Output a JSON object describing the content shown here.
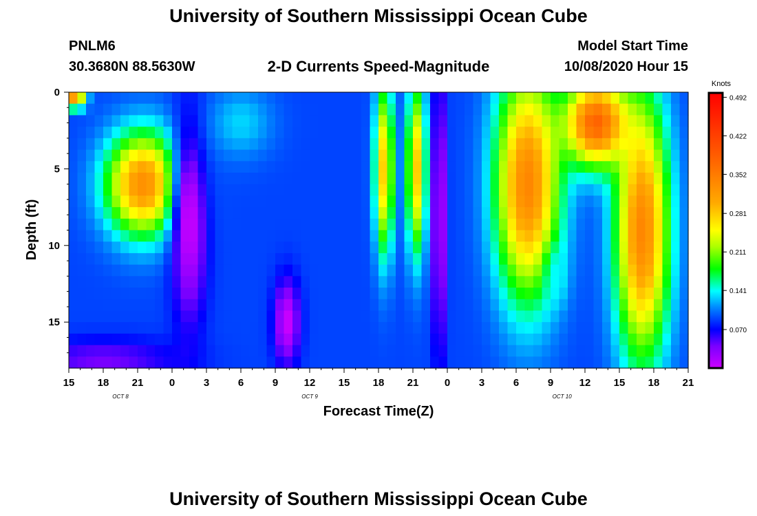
{
  "title": "University of Southern Mississippi Ocean Cube",
  "footer_title": "University of Southern Mississippi Ocean Cube",
  "station": "PNLM6",
  "coordinates": "30.3680N 88.5630W",
  "subtitle": "2-D Currents Speed-Magnitude",
  "model_start_label": "Model Start Time",
  "model_start_value": "10/08/2020 Hour 15",
  "chart_data": {
    "type": "heatmap",
    "title": "2-D Currents Speed-Magnitude",
    "xlabel": "Forecast Time(Z)",
    "ylabel": "Depth (ft)",
    "units": "Knots",
    "x_ticks": [
      "15",
      "18",
      "21",
      "0",
      "3",
      "6",
      "9",
      "12",
      "15",
      "18",
      "21",
      "0",
      "3",
      "6",
      "9",
      "12",
      "15",
      "18",
      "21"
    ],
    "x_date_labels": [
      {
        "label": "OCT 8",
        "at_hour": 4.5
      },
      {
        "label": "OCT 9",
        "at_hour": 21
      },
      {
        "label": "OCT 10",
        "at_hour": 43
      }
    ],
    "y_ticks": [
      0,
      5,
      10,
      15
    ],
    "ylim": [
      0,
      18
    ],
    "xlim_hours": [
      0,
      54
    ],
    "colorbar_ticks": [
      0.07,
      0.141,
      0.211,
      0.281,
      0.352,
      0.422,
      0.492
    ],
    "colorbar_range": [
      0,
      0.5
    ],
    "colorbar_colors": [
      "#cc00ff",
      "#7a00ff",
      "#0000ff",
      "#0088ff",
      "#00ffff",
      "#00ff00",
      "#aaff00",
      "#ffff00",
      "#ffaa00",
      "#ff6600",
      "#ff0000"
    ],
    "features": [
      {
        "hour": 6.5,
        "depth": 6,
        "speed_knots": 0.33,
        "hw": 3.5,
        "hd": 3.6
      },
      {
        "hour": 0.5,
        "depth": 0.5,
        "speed_knots": 0.33,
        "hw": 1.0,
        "hd": 0.6
      },
      {
        "hour": 3.0,
        "depth": 17.5,
        "speed_knots": 0.04,
        "hw": 7.0,
        "hd": 1.5
      },
      {
        "hour": 10.5,
        "depth": 8.5,
        "speed_knots": 0.0,
        "hw": 1.6,
        "hd": 7.0
      },
      {
        "hour": 19.0,
        "depth": 15.0,
        "speed_knots": 0.0,
        "hw": 1.2,
        "hd": 3.0
      },
      {
        "hour": 15.0,
        "depth": 2.0,
        "speed_knots": 0.13,
        "hw": 3.0,
        "hd": 2.5
      },
      {
        "hour": 27.5,
        "depth": 5.0,
        "speed_knots": 0.28,
        "hw": 0.9,
        "hd": 6.0
      },
      {
        "hour": 30.3,
        "depth": 5.0,
        "speed_knots": 0.28,
        "hw": 0.9,
        "hd": 6.0
      },
      {
        "hour": 32.3,
        "depth": 8.0,
        "speed_knots": 0.0,
        "hw": 0.6,
        "hd": 10.0
      },
      {
        "hour": 40.0,
        "depth": 6.0,
        "speed_knots": 0.34,
        "hw": 3.0,
        "hd": 8.0
      },
      {
        "hour": 46.0,
        "depth": 2.0,
        "speed_knots": 0.38,
        "hw": 3.0,
        "hd": 3.0
      },
      {
        "hour": 50.0,
        "depth": 9.0,
        "speed_knots": 0.34,
        "hw": 2.5,
        "hd": 9.0
      },
      {
        "hour": 42.5,
        "depth": 12.0,
        "speed_knots": 0.14,
        "hw": 1.0,
        "hd": 2.0
      }
    ]
  }
}
